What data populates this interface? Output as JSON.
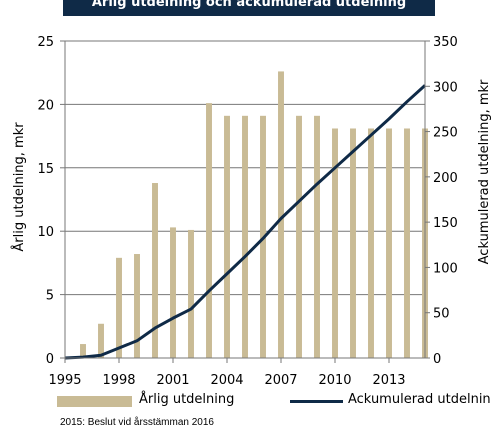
{
  "chart_data": {
    "type": "bar",
    "title": "Årlig utdelning och ackumulerad utdelning",
    "ylabel": "Årlig utdelning, mkr",
    "y2label": "Ackumulerad utdelning, mkr",
    "ylim": [
      0,
      25
    ],
    "y2lim": [
      0,
      350
    ],
    "yticks": [
      0,
      5,
      10,
      15,
      20,
      25
    ],
    "y2ticks": [
      0,
      50,
      100,
      150,
      200,
      250,
      300,
      350
    ],
    "xlim": [
      1995,
      2015
    ],
    "xticks": [
      1995,
      1998,
      2001,
      2004,
      2007,
      2010,
      2013
    ],
    "grid": true,
    "legend_position": "bottom",
    "x": [
      1996,
      1997,
      1998,
      1999,
      2000,
      2001,
      2002,
      2003,
      2004,
      2005,
      2006,
      2007,
      2008,
      2009,
      2010,
      2011,
      2012,
      2013,
      2014,
      2015
    ],
    "series": [
      {
        "name": "Årlig utdelning",
        "kind": "bar",
        "axis": "left",
        "values": [
          1.1,
          2.7,
          7.9,
          8.2,
          13.8,
          10.3,
          10.1,
          20.1,
          19.1,
          19.1,
          19.1,
          22.6,
          19.1,
          19.1,
          18.1,
          18.1,
          18.1,
          18.1,
          18.1,
          18.1
        ]
      },
      {
        "name": "Ackumulerad utdelning",
        "kind": "line",
        "axis": "right",
        "x": [
          1995,
          1996,
          1997,
          1998,
          1999,
          2000,
          2001,
          2002,
          2003,
          2004,
          2005,
          2006,
          2007,
          2008,
          2009,
          2010,
          2011,
          2012,
          2013,
          2014,
          2015
        ],
        "values": [
          0,
          1,
          3,
          11,
          19,
          33,
          44,
          54,
          74,
          93,
          112,
          132,
          154,
          173,
          192,
          210,
          228,
          246,
          264,
          283,
          301
        ]
      }
    ],
    "colors": {
      "bar": "#c9bb95",
      "line": "#0f2a47",
      "grid": "#777777",
      "banner": "#0f2a47"
    },
    "footnote": "2015: Beslut vid årsstämman 2016"
  }
}
